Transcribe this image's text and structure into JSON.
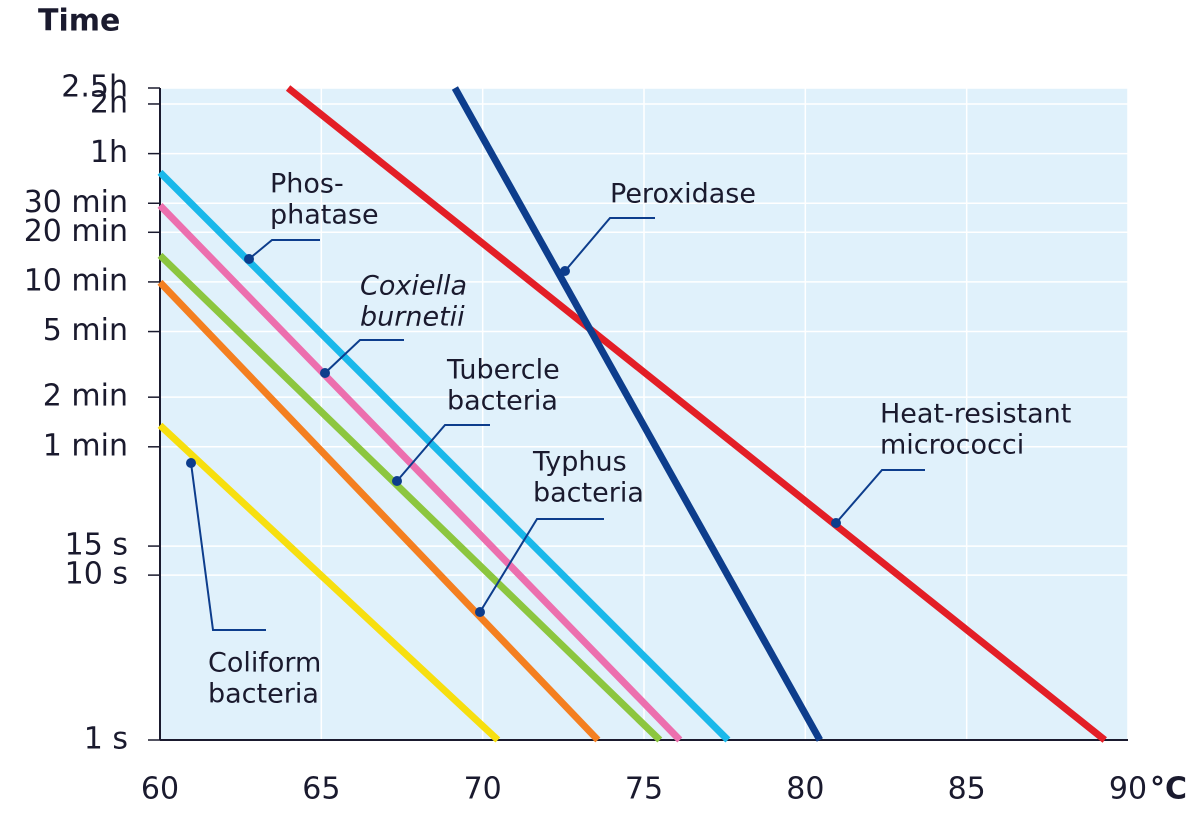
{
  "chart_data": {
    "type": "line",
    "y_label": "Time",
    "x_label": "°C",
    "log_y": true,
    "grid": true,
    "xlim": [
      60,
      90
    ],
    "xticks": [
      60,
      65,
      70,
      75,
      80,
      85,
      90
    ],
    "ylim": [
      1,
      9000
    ],
    "yticks": [
      {
        "value": 1,
        "label": "1 s"
      },
      {
        "value": 10,
        "label": "10 s"
      },
      {
        "value": 15,
        "label": "15 s"
      },
      {
        "value": 60,
        "label": "1 min"
      },
      {
        "value": 120,
        "label": "2 min"
      },
      {
        "value": 300,
        "label": "5 min"
      },
      {
        "value": 600,
        "label": "10 min"
      },
      {
        "value": 1200,
        "label": "20 min"
      },
      {
        "value": 1800,
        "label": "30 min"
      },
      {
        "value": 3600,
        "label": "1h"
      },
      {
        "value": 7200,
        "label": "2h"
      },
      {
        "value": 9000,
        "label": "2.5h"
      }
    ],
    "series": [
      {
        "label": [
          "Heat-resistant",
          "micrococci"
        ],
        "color": "#e31e26",
        "x": [
          63.97,
          89.28
        ],
        "values": [
          9000,
          1
        ]
      },
      {
        "label": [
          "Peroxidase"
        ],
        "color": "#0d3d8c",
        "x": [
          69.14,
          80.45
        ],
        "values": [
          9000,
          1
        ]
      },
      {
        "label": [
          "Phos-",
          "phatase"
        ],
        "color": "#1ab8ea",
        "x": [
          60,
          77.6
        ],
        "values": [
          2770,
          1
        ]
      },
      {
        "label": [
          "Coxiella",
          "burnetii"
        ],
        "italic": true,
        "color": "#ec6fae",
        "x": [
          60,
          76.11
        ],
        "values": [
          1746,
          1
        ]
      },
      {
        "label": [
          "Tubercle",
          "bacteria"
        ],
        "color": "#8cc63f",
        "x": [
          60,
          75.49
        ],
        "values": [
          869,
          1
        ]
      },
      {
        "label": [
          "Typhus",
          "bacteria"
        ],
        "color": "#f47f20",
        "x": [
          60,
          73.57
        ],
        "values": [
          597,
          1
        ]
      },
      {
        "label": [
          "Coliform",
          "bacteria"
        ],
        "color": "#f7df0f",
        "x": [
          60,
          70.47
        ],
        "values": [
          81,
          1
        ]
      }
    ]
  }
}
